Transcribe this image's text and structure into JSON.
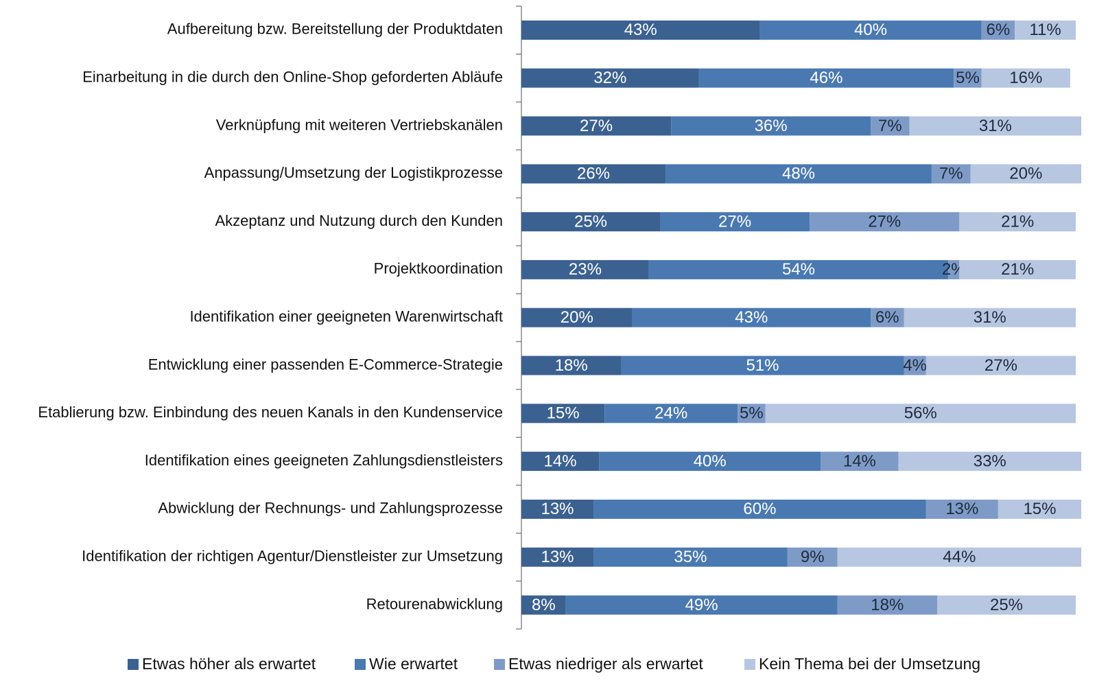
{
  "chart_data": {
    "type": "stacked_barh",
    "categories": [
      "Aufbereitung bzw. Bereitstellung der Produktdaten",
      "Einarbeitung in die durch den Online-Shop geforderten Abläufe",
      "Verknüpfung mit weiteren Vertriebskanälen",
      "Anpassung/Umsetzung der Logistikprozesse",
      "Akzeptanz und Nutzung durch den Kunden",
      "Projektkoordination",
      "Identifikation einer geeigneten Warenwirtschaft",
      "Entwicklung einer passenden E-Commerce-Strategie",
      "Etablierung bzw. Einbindung des neuen Kanals in den Kundenservice",
      "Identifikation eines geeigneten Zahlungsdienstleisters",
      "Abwicklung der Rechnungs- und Zahlungsprozesse",
      "Identifikation der richtigen Agentur/Dienstleister zur Umsetzung",
      "Retourenabwicklung"
    ],
    "series": [
      {
        "name": "Etwas höher als erwartet",
        "color": "#3b6190",
        "label_color": "#ffffff",
        "values": [
          43,
          32,
          27,
          26,
          25,
          23,
          20,
          18,
          15,
          14,
          13,
          13,
          8
        ],
        "value_labels": [
          "43%",
          "32%",
          "27%",
          "26%",
          "25%",
          "23%",
          "20%",
          "18%",
          "15%",
          "14%",
          "13%",
          "13%",
          "8%"
        ]
      },
      {
        "name": "Wie erwartet",
        "color": "#4a79b1",
        "label_color": "#ffffff",
        "values": [
          40,
          46,
          36,
          48,
          27,
          54,
          43,
          51,
          24,
          40,
          60,
          35,
          49
        ],
        "value_labels": [
          "40%",
          "46%",
          "36%",
          "48%",
          "27%",
          "54%",
          "43%",
          "51%",
          "24%",
          "40%",
          "60%",
          "35%",
          "49%"
        ]
      },
      {
        "name": "Etwas niedriger als erwartet",
        "color": "#7e9bc8",
        "label_color": "#1f2a3a",
        "values": [
          6,
          5,
          7,
          7,
          27,
          2,
          6,
          4,
          5,
          14,
          13,
          9,
          18
        ],
        "value_labels": [
          "6%",
          "5%",
          "7%",
          "7%",
          "27%",
          "2%",
          "6%",
          "4%",
          "5%",
          "14%",
          "13%",
          "9%",
          "18%"
        ]
      },
      {
        "name": "Kein Thema bei der Umsetzung",
        "color": "#b7c6e1",
        "label_color": "#1f2a3a",
        "values": [
          11,
          16,
          31,
          20,
          21,
          21,
          31,
          27,
          56,
          33,
          15,
          44,
          25
        ],
        "value_labels": [
          "11%",
          "16%",
          "31%",
          "20%",
          "21%",
          "21%",
          "31%",
          "27%",
          "56%",
          "33%",
          "15%",
          "44%",
          "25%"
        ]
      }
    ],
    "xlim": [
      0,
      100
    ],
    "legend": "bottom"
  }
}
